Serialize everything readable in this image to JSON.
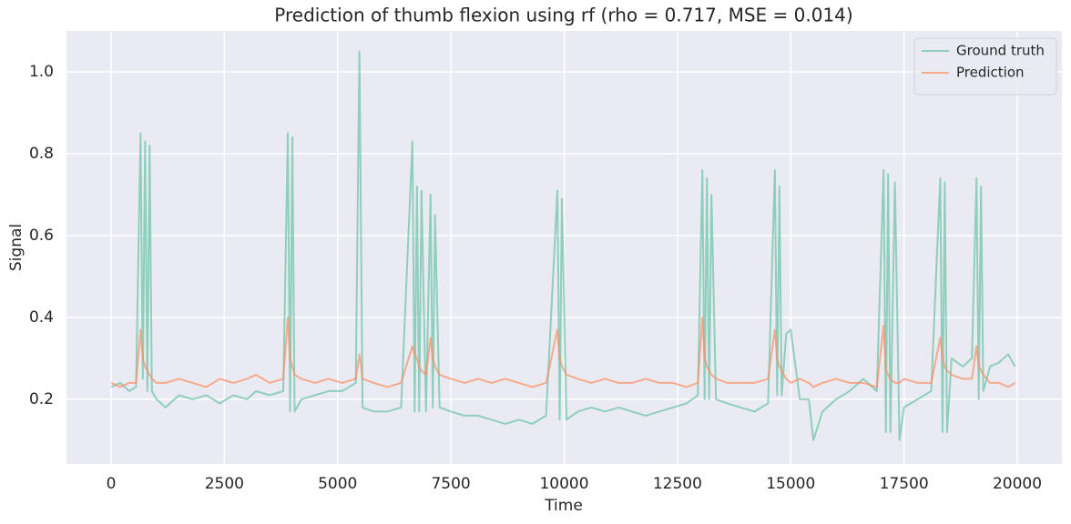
{
  "chart_data": {
    "type": "line",
    "title": "Prediction of thumb flexion using rf (rho = 0.717, MSE = 0.014)",
    "xlabel": "Time",
    "ylabel": "Signal",
    "x": [
      0,
      200,
      400,
      550,
      650,
      700,
      750,
      800,
      850,
      900,
      1000,
      1200,
      1500,
      1800,
      2100,
      2400,
      2700,
      3000,
      3200,
      3500,
      3800,
      3900,
      3950,
      4000,
      4050,
      4200,
      4500,
      4800,
      5100,
      5400,
      5480,
      5550,
      5800,
      6100,
      6400,
      6650,
      6700,
      6750,
      6800,
      6850,
      6950,
      7050,
      7100,
      7150,
      7250,
      7500,
      7800,
      8100,
      8400,
      8700,
      9000,
      9300,
      9600,
      9850,
      9900,
      9950,
      10050,
      10300,
      10600,
      10900,
      11200,
      11500,
      11800,
      12100,
      12400,
      12700,
      12950,
      13050,
      13100,
      13150,
      13200,
      13250,
      13350,
      13600,
      13900,
      14200,
      14500,
      14650,
      14700,
      14750,
      14800,
      14900,
      15000,
      15200,
      15400,
      15500,
      15700,
      16000,
      16300,
      16600,
      16900,
      17050,
      17100,
      17150,
      17200,
      17300,
      17400,
      17500,
      17800,
      18100,
      18300,
      18350,
      18400,
      18450,
      18550,
      18800,
      19000,
      19100,
      19150,
      19200,
      19250,
      19400,
      19600,
      19800,
      19950
    ],
    "series": [
      {
        "name": "Ground truth",
        "color": "#66c2a5",
        "values": [
          0.23,
          0.24,
          0.22,
          0.23,
          0.85,
          0.25,
          0.83,
          0.22,
          0.82,
          0.22,
          0.2,
          0.18,
          0.21,
          0.2,
          0.21,
          0.19,
          0.21,
          0.2,
          0.22,
          0.21,
          0.22,
          0.85,
          0.17,
          0.84,
          0.17,
          0.2,
          0.21,
          0.22,
          0.22,
          0.24,
          1.05,
          0.18,
          0.17,
          0.17,
          0.18,
          0.83,
          0.17,
          0.72,
          0.17,
          0.71,
          0.17,
          0.7,
          0.18,
          0.65,
          0.18,
          0.17,
          0.16,
          0.16,
          0.15,
          0.14,
          0.15,
          0.14,
          0.16,
          0.71,
          0.15,
          0.69,
          0.15,
          0.17,
          0.18,
          0.17,
          0.18,
          0.17,
          0.16,
          0.17,
          0.18,
          0.19,
          0.21,
          0.76,
          0.2,
          0.74,
          0.2,
          0.7,
          0.2,
          0.19,
          0.18,
          0.17,
          0.19,
          0.76,
          0.21,
          0.72,
          0.21,
          0.36,
          0.37,
          0.2,
          0.2,
          0.1,
          0.17,
          0.2,
          0.22,
          0.25,
          0.22,
          0.76,
          0.12,
          0.75,
          0.12,
          0.73,
          0.1,
          0.18,
          0.2,
          0.22,
          0.74,
          0.12,
          0.73,
          0.12,
          0.3,
          0.28,
          0.3,
          0.74,
          0.2,
          0.72,
          0.22,
          0.28,
          0.29,
          0.31,
          0.28
        ]
      },
      {
        "name": "Prediction",
        "color": "#fc8d62",
        "values": [
          0.24,
          0.23,
          0.24,
          0.24,
          0.37,
          0.3,
          0.28,
          0.27,
          0.26,
          0.25,
          0.24,
          0.24,
          0.25,
          0.24,
          0.23,
          0.25,
          0.24,
          0.25,
          0.26,
          0.24,
          0.25,
          0.4,
          0.3,
          0.28,
          0.26,
          0.25,
          0.24,
          0.25,
          0.24,
          0.25,
          0.31,
          0.25,
          0.24,
          0.23,
          0.24,
          0.33,
          0.31,
          0.3,
          0.28,
          0.27,
          0.26,
          0.35,
          0.3,
          0.28,
          0.26,
          0.25,
          0.24,
          0.25,
          0.24,
          0.25,
          0.24,
          0.23,
          0.24,
          0.37,
          0.3,
          0.28,
          0.26,
          0.25,
          0.24,
          0.25,
          0.24,
          0.24,
          0.25,
          0.24,
          0.24,
          0.23,
          0.24,
          0.4,
          0.3,
          0.28,
          0.27,
          0.26,
          0.25,
          0.24,
          0.24,
          0.24,
          0.25,
          0.37,
          0.3,
          0.28,
          0.27,
          0.25,
          0.24,
          0.25,
          0.24,
          0.23,
          0.24,
          0.25,
          0.24,
          0.24,
          0.23,
          0.38,
          0.27,
          0.26,
          0.25,
          0.24,
          0.24,
          0.25,
          0.24,
          0.24,
          0.35,
          0.3,
          0.28,
          0.27,
          0.26,
          0.25,
          0.25,
          0.33,
          0.28,
          0.27,
          0.26,
          0.24,
          0.24,
          0.23,
          0.24
        ]
      }
    ],
    "xlim": [
      -985,
      20985
    ],
    "ylim": [
      0.042,
      1.1
    ],
    "xticks": [
      0,
      2500,
      5000,
      7500,
      10000,
      12500,
      15000,
      17500,
      20000
    ],
    "yticks": [
      0.2,
      0.4,
      0.6,
      0.8,
      {
        "value": 1,
        "label": "1.0"
      }
    ],
    "grid": true,
    "legend": "upper right"
  }
}
